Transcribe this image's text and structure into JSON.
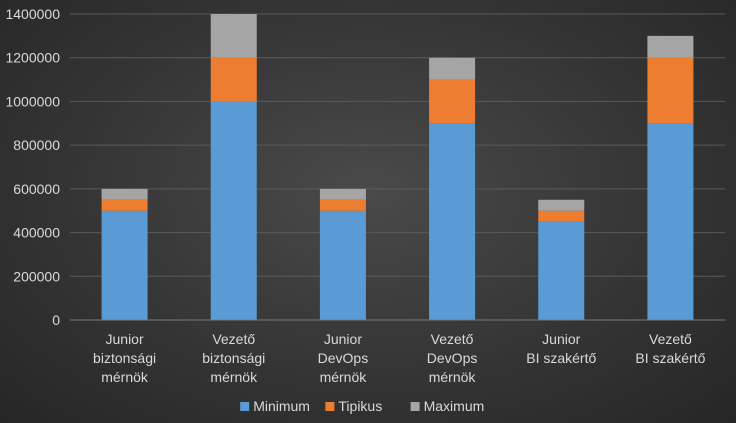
{
  "chart_data": {
    "type": "bar",
    "stacked": true,
    "categories": [
      [
        "Junior",
        "biztonsági",
        "mérnök"
      ],
      [
        "Vezető",
        "biztonsági",
        "mérnök"
      ],
      [
        "Junior",
        "DevOps",
        "mérnök"
      ],
      [
        "Vezető",
        "DevOps",
        "mérnök"
      ],
      [
        "Junior",
        "BI szakértő"
      ],
      [
        "Vezető",
        "BI szakértő"
      ]
    ],
    "series": [
      {
        "name": "Minimum",
        "color": "#5b9bd5",
        "values": [
          500000,
          1000000,
          500000,
          900000,
          450000,
          900000
        ]
      },
      {
        "name": "Tipikus",
        "color": "#ed7d31",
        "values": [
          50000,
          200000,
          50000,
          200000,
          50000,
          300000
        ]
      },
      {
        "name": "Maximum",
        "color": "#a5a5a5",
        "values": [
          50000,
          200000,
          50000,
          100000,
          50000,
          100000
        ]
      }
    ],
    "ylim": [
      0,
      1400000
    ],
    "yticks": [
      "0",
      "200000",
      "400000",
      "600000",
      "800000",
      "1000000",
      "1200000",
      "1400000"
    ],
    "ytick_step": 200000,
    "grid": true,
    "legend_position": "bottom",
    "title": "",
    "xlabel": "",
    "ylabel": ""
  }
}
